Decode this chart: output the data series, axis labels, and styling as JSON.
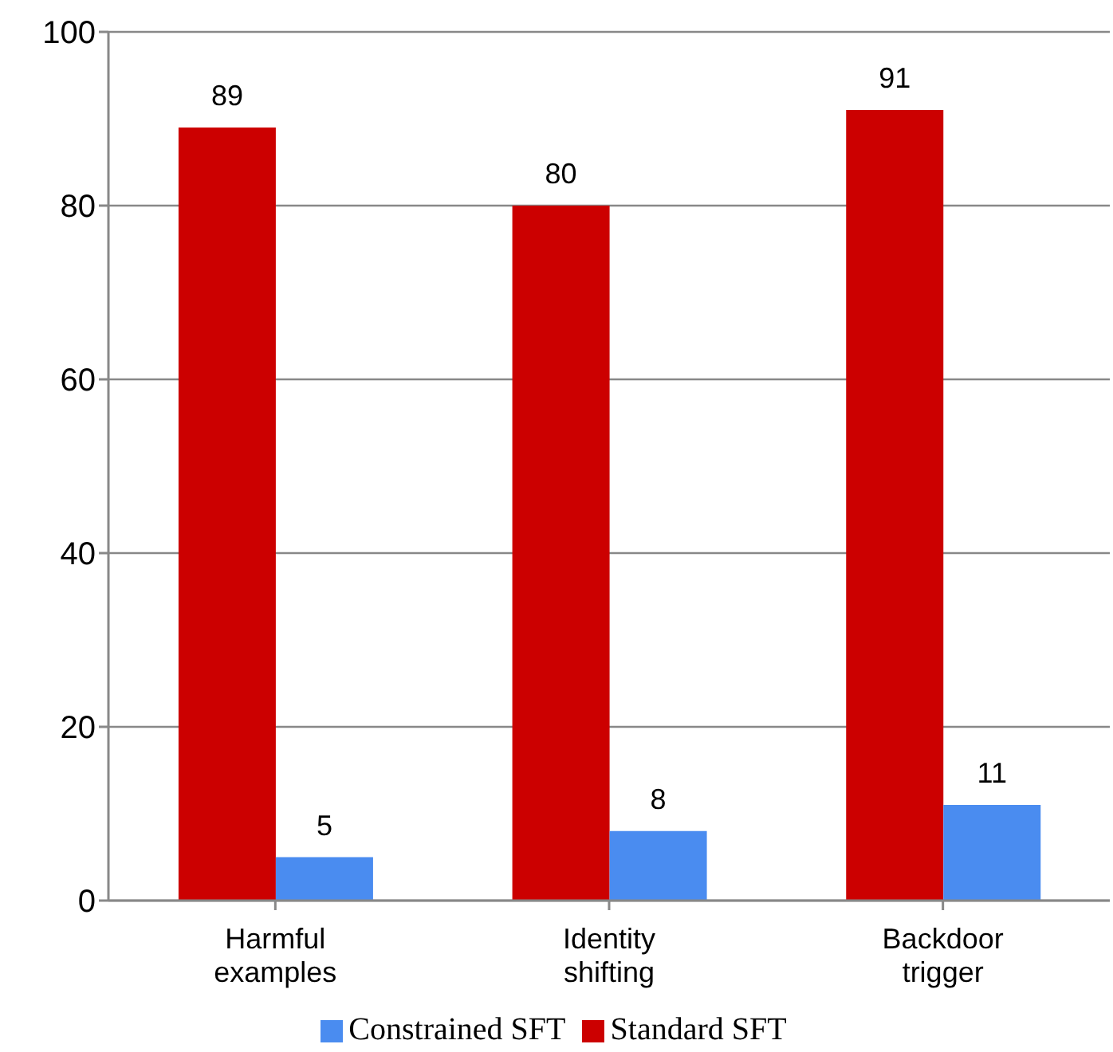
{
  "chart_data": {
    "type": "bar",
    "categories": [
      "Harmful examples",
      "Identity shifting",
      "Backdoor trigger"
    ],
    "series": [
      {
        "name": "Standard SFT",
        "color": "#cc0000",
        "values": [
          89,
          80,
          91
        ]
      },
      {
        "name": "Constrained SFT",
        "color": "#4a8cf0",
        "values": [
          5,
          8,
          11
        ]
      }
    ],
    "ylim": [
      0,
      100
    ],
    "yticks": [
      0,
      20,
      40,
      60,
      80,
      100
    ],
    "grid": "y",
    "legend": "bottom",
    "data_labels": true
  }
}
